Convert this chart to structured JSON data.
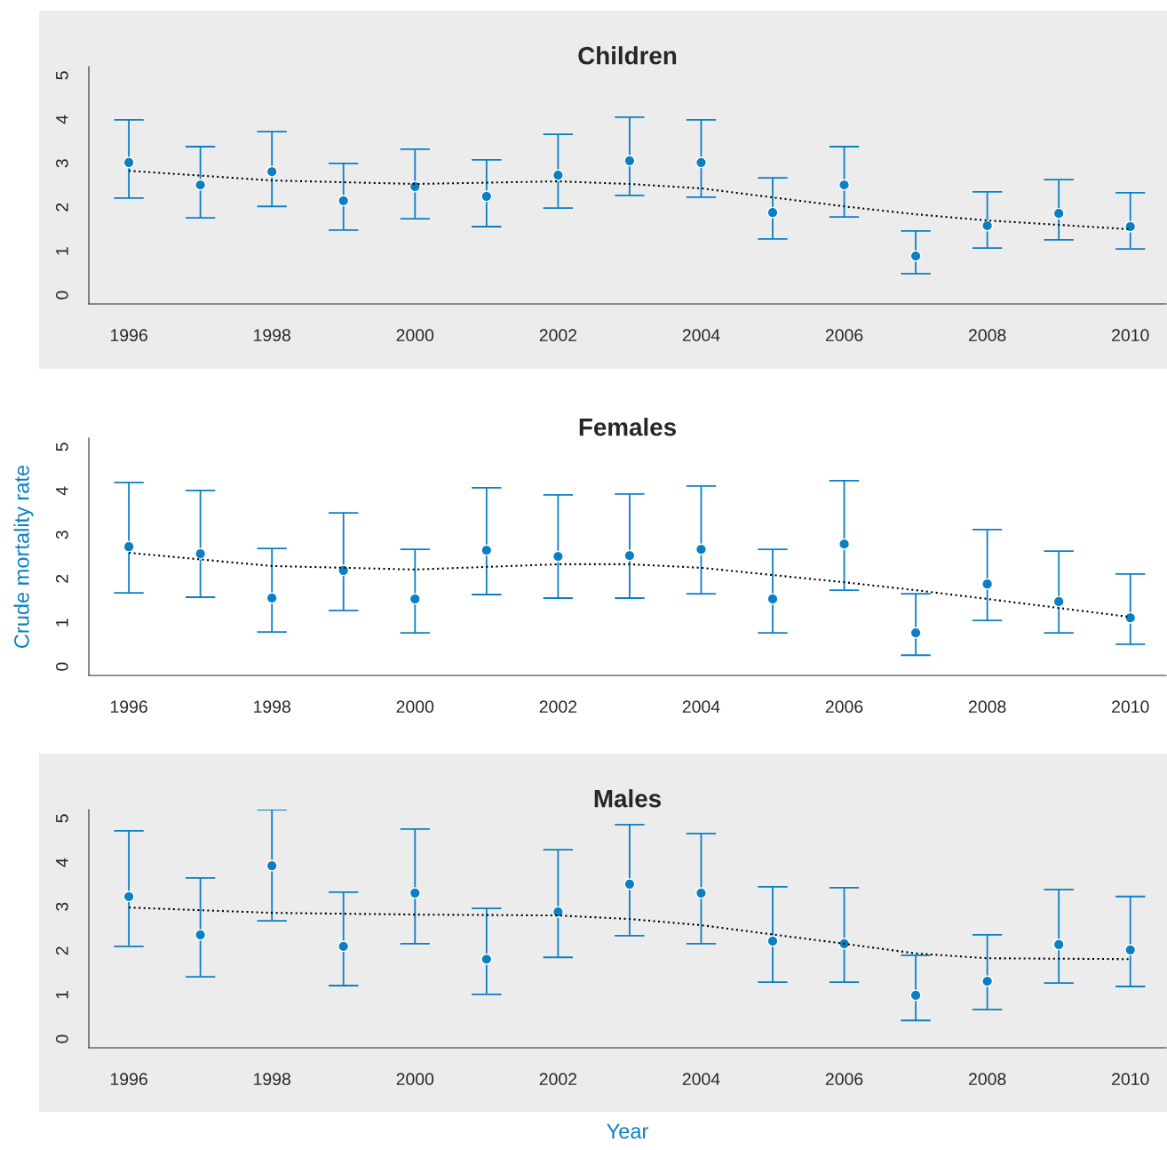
{
  "chart_data": [
    {
      "type": "scatter",
      "title": "Children",
      "x": [
        1996,
        1997,
        1998,
        1999,
        2000,
        2001,
        2002,
        2003,
        2004,
        2005,
        2006,
        2007,
        2008,
        2009,
        2010
      ],
      "xlim": [
        1995.44,
        2010.5
      ],
      "xticks": [
        1996,
        1998,
        2000,
        2002,
        2004,
        2006,
        2008,
        2010
      ],
      "ylim": [
        -0.2,
        5.2
      ],
      "yticks": [
        0,
        1,
        2,
        3,
        4,
        5
      ],
      "marker": "circle",
      "series": [
        {
          "color": "#0a7fc4",
          "values": [
            3.02,
            2.51,
            2.81,
            2.15,
            2.47,
            2.25,
            2.73,
            3.06,
            3.02,
            1.88,
            2.51,
            0.89,
            1.58,
            1.86,
            1.56
          ],
          "errors": [
            [
              2.21,
              3.99
            ],
            [
              1.76,
              3.38
            ],
            [
              2.02,
              3.72
            ],
            [
              1.48,
              3.0
            ],
            [
              1.74,
              3.32
            ],
            [
              1.56,
              3.08
            ],
            [
              1.98,
              3.66
            ],
            [
              2.27,
              4.05
            ],
            [
              2.23,
              3.99
            ],
            [
              1.28,
              2.67
            ],
            [
              1.78,
              3.38
            ],
            [
              0.49,
              1.46
            ],
            [
              1.07,
              2.35
            ],
            [
              1.26,
              2.63
            ],
            [
              1.05,
              2.33
            ]
          ]
        },
        {
          "type": "line",
          "color": "#000000",
          "line_style": "dotted",
          "marker": "none",
          "x": [
            1996,
            1998,
            2000,
            2002,
            2003,
            2004,
            2006,
            2007,
            2008,
            2010
          ],
          "values": [
            2.83,
            2.61,
            2.53,
            2.59,
            2.53,
            2.43,
            2.02,
            1.84,
            1.7,
            1.5
          ]
        }
      ]
    },
    {
      "type": "scatter",
      "title": "Females",
      "ylabel": "Crude mortality rate",
      "x": [
        1996,
        1997,
        1998,
        1999,
        2000,
        2001,
        2002,
        2003,
        2004,
        2005,
        2006,
        2007,
        2008,
        2009,
        2010
      ],
      "xlim": [
        1995.44,
        2010.5
      ],
      "xticks": [
        1996,
        1998,
        2000,
        2002,
        2004,
        2006,
        2008,
        2010
      ],
      "ylim": [
        -0.2,
        5.2
      ],
      "yticks": [
        0,
        1,
        2,
        3,
        4,
        5
      ],
      "marker": "circle",
      "series": [
        {
          "color": "#0a7fc4",
          "values": [
            2.73,
            2.57,
            1.56,
            2.19,
            1.54,
            2.65,
            2.51,
            2.53,
            2.67,
            1.54,
            2.79,
            0.77,
            1.88,
            1.48,
            1.11
          ],
          "errors": [
            [
              1.68,
              4.19
            ],
            [
              1.58,
              4.01
            ],
            [
              0.79,
              2.69
            ],
            [
              1.28,
              3.5
            ],
            [
              0.77,
              2.67
            ],
            [
              1.64,
              4.07
            ],
            [
              1.56,
              3.91
            ],
            [
              1.56,
              3.93
            ],
            [
              1.66,
              4.11
            ],
            [
              0.77,
              2.67
            ],
            [
              1.74,
              4.23
            ],
            [
              0.26,
              1.66
            ],
            [
              1.05,
              3.12
            ],
            [
              0.77,
              2.63
            ],
            [
              0.51,
              2.11
            ]
          ]
        },
        {
          "type": "line",
          "color": "#000000",
          "line_style": "dotted",
          "marker": "none",
          "x": [
            1996,
            1998,
            2000,
            2002,
            2003,
            2004,
            2006,
            2007,
            2008,
            2010
          ],
          "values": [
            2.59,
            2.29,
            2.21,
            2.33,
            2.33,
            2.25,
            1.92,
            1.74,
            1.54,
            1.13
          ]
        }
      ]
    },
    {
      "type": "scatter",
      "title": "Males",
      "xlabel": "Year",
      "x": [
        1996,
        1997,
        1998,
        1999,
        2000,
        2001,
        2002,
        2003,
        2004,
        2005,
        2006,
        2007,
        2008,
        2009,
        2010
      ],
      "xlim": [
        1995.44,
        2010.5
      ],
      "xticks": [
        1996,
        1998,
        2000,
        2002,
        2004,
        2006,
        2008,
        2010
      ],
      "ylim": [
        -0.2,
        5.2
      ],
      "yticks": [
        0,
        1,
        2,
        3,
        4,
        5
      ],
      "marker": "circle",
      "series": [
        {
          "color": "#0a7fc4",
          "values": [
            3.23,
            2.36,
            3.93,
            2.1,
            3.31,
            1.81,
            2.88,
            3.51,
            3.31,
            2.22,
            2.16,
            0.99,
            1.31,
            2.14,
            2.02
          ],
          "errors": [
            [
              2.1,
              4.72
            ],
            [
              1.41,
              3.65
            ],
            [
              2.68,
              5.2
            ],
            [
              1.21,
              3.33
            ],
            [
              2.16,
              4.76
            ],
            [
              1.01,
              2.96
            ],
            [
              1.85,
              4.29
            ],
            [
              2.34,
              4.86
            ],
            [
              2.16,
              4.66
            ],
            [
              1.29,
              3.45
            ],
            [
              1.29,
              3.43
            ],
            [
              0.42,
              1.9
            ],
            [
              0.67,
              2.36
            ],
            [
              1.27,
              3.39
            ],
            [
              1.19,
              3.23
            ]
          ]
        },
        {
          "type": "line",
          "color": "#000000",
          "line_style": "dotted",
          "marker": "none",
          "x": [
            1996,
            1998,
            2000,
            2002,
            2003,
            2004,
            2006,
            2007,
            2008,
            2010
          ],
          "values": [
            2.98,
            2.86,
            2.82,
            2.8,
            2.72,
            2.58,
            2.16,
            1.94,
            1.83,
            1.81
          ]
        }
      ]
    }
  ]
}
